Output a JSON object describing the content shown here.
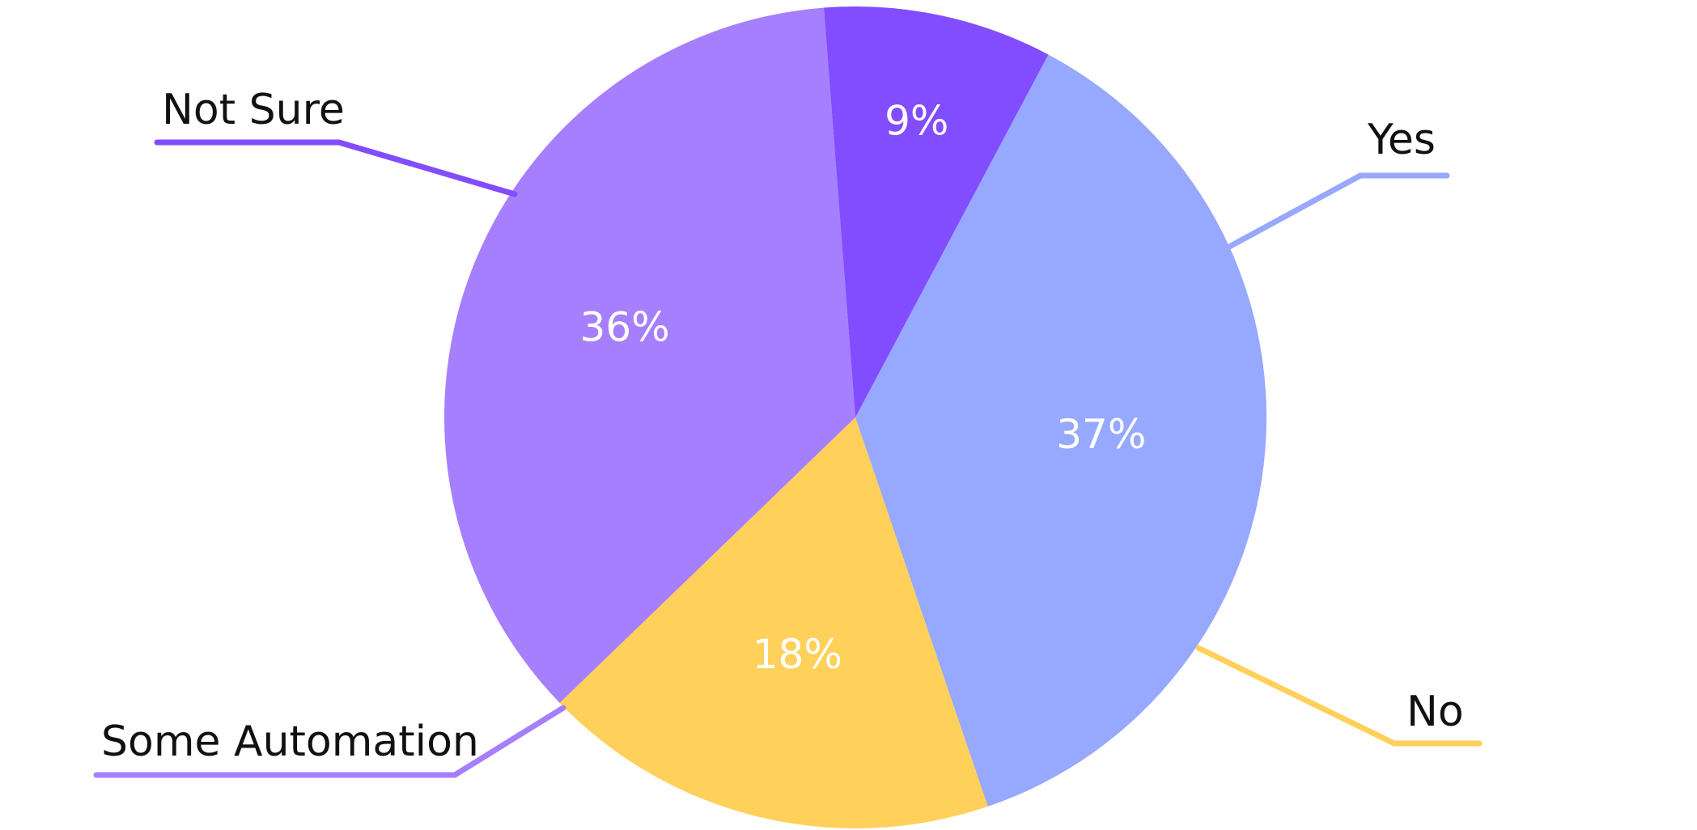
{
  "chart_data": {
    "type": "pie",
    "slices": [
      {
        "label": "Yes",
        "value": 37,
        "value_label": "37%",
        "color": "#97A8FF"
      },
      {
        "label": "No",
        "value": 18,
        "value_label": "18%",
        "color": "#FFD05A"
      },
      {
        "label": "Some Automation",
        "value": 36,
        "value_label": "36%",
        "color": "#A67FFF"
      },
      {
        "label": "Not Sure",
        "value": 9,
        "value_label": "9%",
        "color": "#824DFF"
      }
    ],
    "title": "",
    "legend": "callout labels with leader lines"
  }
}
